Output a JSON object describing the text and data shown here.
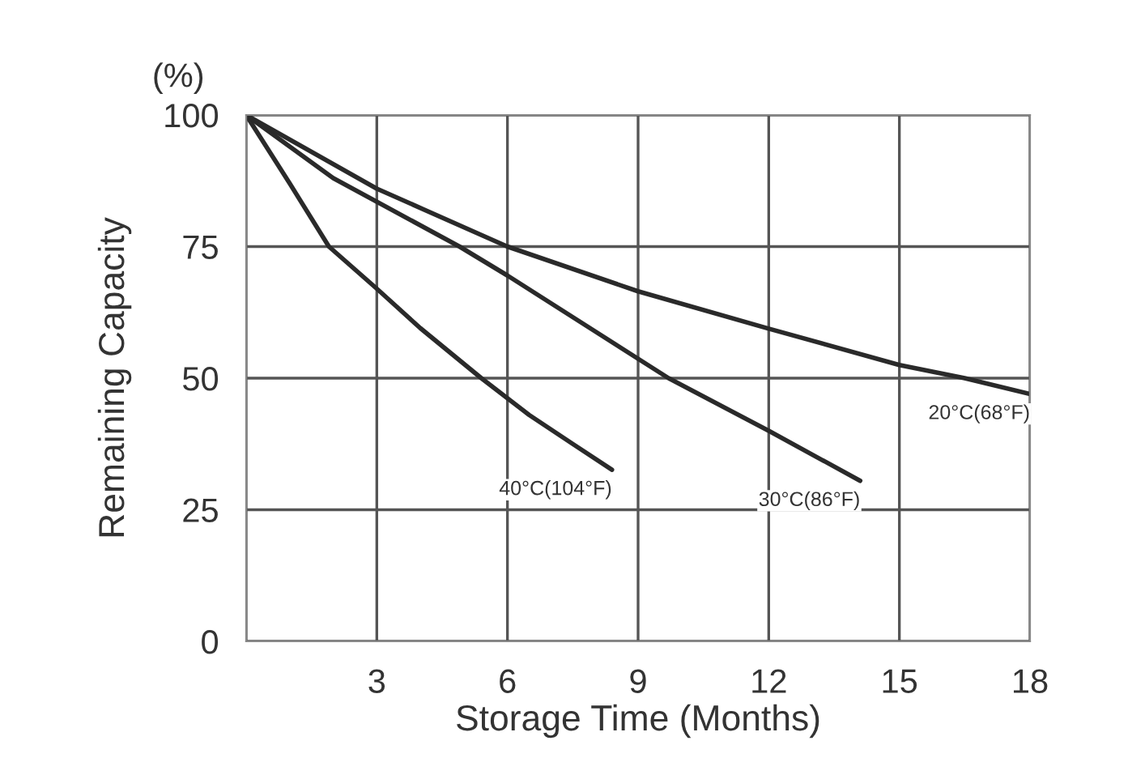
{
  "chart_data": {
    "type": "line",
    "xlabel": "Storage Time (Months)",
    "ylabel": "Remaining Capacity",
    "annotations": [
      "(%)"
    ],
    "series": [
      {
        "name": "40°C(104°F)",
        "color": "#2a2a2a",
        "x": [
          0,
          1,
          1.9,
          3,
          4,
          5.4,
          6.5,
          7.5,
          8.4
        ],
        "values": [
          100,
          87,
          75,
          67,
          59.5,
          50,
          43,
          37.5,
          32.6
        ]
      },
      {
        "name": "30°C(86°F)",
        "color": "#2a2a2a",
        "x": [
          0,
          2,
          4.9,
          6,
          9.7,
          12,
          14.1
        ],
        "values": [
          100,
          88,
          75,
          69.5,
          50,
          40,
          30.5
        ]
      },
      {
        "name": "20°C(68°F)",
        "color": "#2a2a2a",
        "x": [
          0,
          3,
          6,
          9,
          12,
          15,
          16.5,
          18
        ],
        "values": [
          100,
          86,
          75,
          66.5,
          59.4,
          52.5,
          50,
          47
        ]
      }
    ],
    "xlim": [
      0,
      18
    ],
    "ylim": [
      0,
      100
    ],
    "xticks": [
      {
        "value": 0,
        "label": null
      },
      3,
      6,
      9,
      12,
      15,
      18
    ],
    "yticks": [
      0,
      25,
      50,
      75,
      100
    ],
    "grid": true
  }
}
